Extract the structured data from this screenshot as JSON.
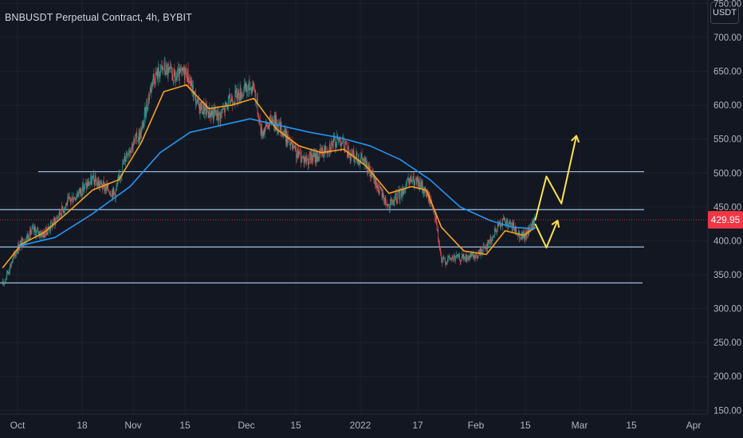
{
  "header": {
    "symbol_title": "BNBUSDT Perpetual Contract, 4h, BYBIT",
    "unit_label": "USDT"
  },
  "price_axis": {
    "ticks": [
      "750.00",
      "700.00",
      "650.00",
      "600.00",
      "550.00",
      "500.00",
      "450.00",
      "400.00",
      "350.00",
      "300.00",
      "250.00",
      "200.00",
      "150.00"
    ]
  },
  "time_axis": {
    "ticks": [
      "Oct",
      "18",
      "Nov",
      "15",
      "Dec",
      "15",
      "2022",
      "17",
      "Feb",
      "15",
      "Mar",
      "15",
      "Apr"
    ]
  },
  "last_price": "429.95",
  "colors": {
    "background": "#131722",
    "candle_up": "#26a69a",
    "candle_down": "#ef5350",
    "ma_fast": "#f7a21b",
    "ma_slow": "#2196f3",
    "levels": "#9fc3e6",
    "projection": "#ffe24a",
    "last_price": "#f23645"
  },
  "chart_data": {
    "type": "candlestick",
    "ylim": [
      150,
      750
    ],
    "levels": [
      502,
      446,
      391,
      338
    ],
    "close_path": [
      [
        "Sep 27",
        335
      ],
      [
        "Oct 1",
        390
      ],
      [
        "Oct 5",
        415
      ],
      [
        "Oct 8",
        410
      ],
      [
        "Oct 11",
        430
      ],
      [
        "Oct 14",
        455
      ],
      [
        "Oct 18",
        475
      ],
      [
        "Oct 21",
        490
      ],
      [
        "Oct 24",
        480
      ],
      [
        "Oct 27",
        470
      ],
      [
        "Oct 30",
        530
      ],
      [
        "Nov 3",
        560
      ],
      [
        "Nov 6",
        640
      ],
      [
        "Nov 9",
        655
      ],
      [
        "Nov 12",
        640
      ],
      [
        "Nov 15",
        650
      ],
      [
        "Nov 18",
        600
      ],
      [
        "Nov 21",
        590
      ],
      [
        "Nov 24",
        585
      ],
      [
        "Nov 27",
        610
      ],
      [
        "Nov 30",
        620
      ],
      [
        "Dec 3",
        630
      ],
      [
        "Dec 5",
        560
      ],
      [
        "Dec 8",
        580
      ],
      [
        "Dec 11",
        560
      ],
      [
        "Dec 14",
        530
      ],
      [
        "Dec 17",
        520
      ],
      [
        "Dec 20",
        525
      ],
      [
        "Dec 23",
        540
      ],
      [
        "Dec 26",
        550
      ],
      [
        "Dec 29",
        525
      ],
      [
        "Jan 1",
        520
      ],
      [
        "Jan 5",
        480
      ],
      [
        "Jan 8",
        450
      ],
      [
        "Jan 11",
        470
      ],
      [
        "Jan 14",
        490
      ],
      [
        "Jan 17",
        480
      ],
      [
        "Jan 20",
        450
      ],
      [
        "Jan 22",
        370
      ],
      [
        "Jan 25",
        375
      ],
      [
        "Jan 28",
        375
      ],
      [
        "Jan 31",
        375
      ],
      [
        "Feb 4",
        400
      ],
      [
        "Feb 7",
        430
      ],
      [
        "Feb 10",
        420
      ],
      [
        "Feb 13",
        405
      ],
      [
        "Feb 16",
        430
      ]
    ],
    "series": [
      {
        "name": "",
        "role": "fast moving average",
        "points": [
          [
            "Sep 27",
            360
          ],
          [
            "Oct 2",
            395
          ],
          [
            "Oct 8",
            412
          ],
          [
            "Oct 14",
            440
          ],
          [
            "Oct 21",
            475
          ],
          [
            "Oct 28",
            490
          ],
          [
            "Nov 3",
            545
          ],
          [
            "Nov 9",
            620
          ],
          [
            "Nov 15",
            630
          ],
          [
            "Nov 21",
            595
          ],
          [
            "Nov 27",
            600
          ],
          [
            "Dec 3",
            610
          ],
          [
            "Dec 9",
            565
          ],
          [
            "Dec 15",
            540
          ],
          [
            "Dec 21",
            530
          ],
          [
            "Dec 27",
            535
          ],
          [
            "Jan 2",
            510
          ],
          [
            "Jan 8",
            470
          ],
          [
            "Jan 14",
            480
          ],
          [
            "Jan 18",
            475
          ],
          [
            "Jan 22",
            420
          ],
          [
            "Jan 28",
            385
          ],
          [
            "Feb 3",
            380
          ],
          [
            "Feb 8",
            415
          ],
          [
            "Feb 13",
            408
          ],
          [
            "Feb 16",
            420
          ]
        ]
      },
      {
        "name": "",
        "role": "slow moving average",
        "points": [
          [
            "Oct 1",
            392
          ],
          [
            "Oct 11",
            405
          ],
          [
            "Oct 21",
            440
          ],
          [
            "Oct 31",
            480
          ],
          [
            "Nov 8",
            530
          ],
          [
            "Nov 16",
            560
          ],
          [
            "Nov 24",
            570
          ],
          [
            "Dec 2",
            580
          ],
          [
            "Dec 10",
            570
          ],
          [
            "Dec 18",
            560
          ],
          [
            "Dec 26",
            552
          ],
          [
            "Jan 3",
            540
          ],
          [
            "Jan 11",
            520
          ],
          [
            "Jan 19",
            490
          ],
          [
            "Jan 27",
            450
          ],
          [
            "Feb 4",
            430
          ],
          [
            "Feb 10",
            420
          ],
          [
            "Feb 16",
            418
          ]
        ]
      }
    ],
    "projection_up": [
      [
        "Feb 16",
        430
      ],
      [
        "Feb 19",
        495
      ],
      [
        "Feb 23",
        455
      ],
      [
        "Feb 27",
        555
      ]
    ],
    "projection_down": [
      [
        "Feb 16",
        425
      ],
      [
        "Feb 19",
        390
      ],
      [
        "Feb 22",
        430
      ]
    ]
  }
}
